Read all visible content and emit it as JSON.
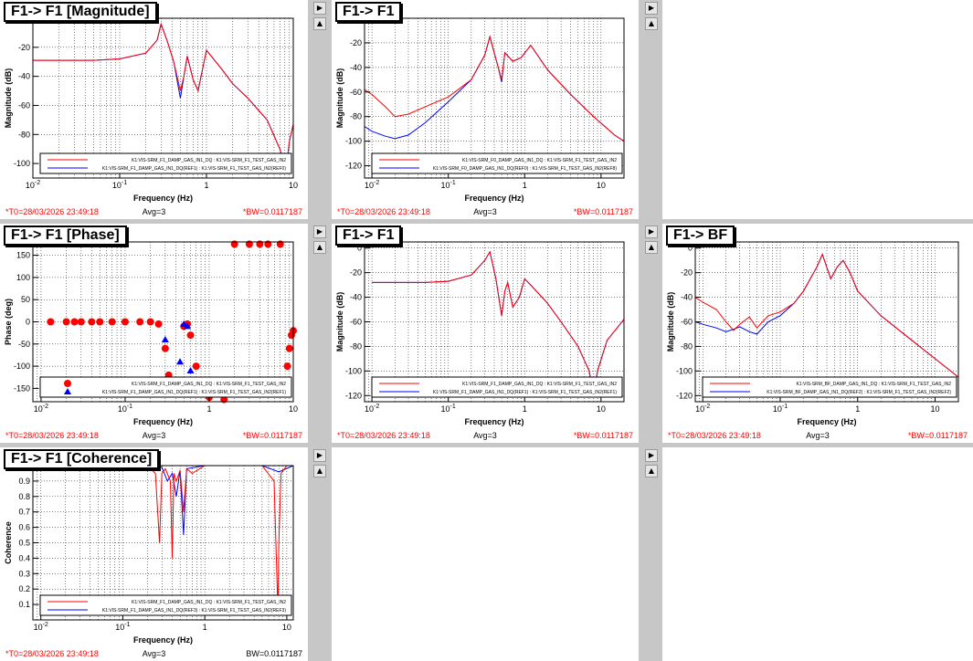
{
  "common": {
    "t0": "*T0=28/03/2026 23:49:18",
    "avg": "Avg=3",
    "bw_star": "*BW=0.0117187",
    "bw": "BW=0.0117187",
    "freq_label": "Frequency (Hz)",
    "mag_label": "Magnitude (dB)",
    "phase_label": "Phase (deg)",
    "coh_label": "Coherence"
  },
  "colors": {
    "series_a": "#ff0000",
    "series_b": "#0000ff",
    "bg": "#c7c7c7",
    "t0": "#ff0000"
  },
  "scroll_icon": "triangle-up-icon",
  "pads": [
    {
      "title": "F1-> F1 [Magnitude]",
      "legend": [
        "K1:VIS-SRM_F1_DAMP_GAS_IN1_DQ : K1:VIS-SRM_F1_TEST_GAS_IN2",
        "K1:VIS-SRM_F1_DAMP_GAS_IN1_DQ(REF1) : K1:VIS-SRM_F1_TEST_GAS_IN2(REF0)"
      ],
      "chart_data": {
        "type": "line",
        "xscale": "log",
        "xlim": [
          0.01,
          10
        ],
        "ylim": [
          -110,
          0
        ],
        "xlabel": "Frequency (Hz)",
        "ylabel": "Magnitude (dB)",
        "xticks": [
          "10^-2",
          "10^-1",
          "1",
          "10"
        ],
        "yticks": [
          -20,
          -40,
          -60,
          -80,
          -100
        ],
        "series": [
          {
            "x": [
              0.01,
              0.05,
              0.1,
              0.2,
              0.27,
              0.3,
              0.35,
              0.42,
              0.5,
              0.55,
              0.6,
              0.7,
              0.8,
              1,
              1.5,
              2,
              3,
              5,
              7,
              8.3,
              9,
              10
            ],
            "y": [
              -29,
              -29,
              -28,
              -24,
              -15,
              -4,
              -15,
              -30,
              -50,
              -40,
              -26,
              -42,
              -50,
              -22,
              -35,
              -45,
              -55,
              -70,
              -90,
              -104,
              -85,
              -73
            ]
          },
          {
            "x": [
              0.01,
              0.05,
              0.1,
              0.2,
              0.27,
              0.3,
              0.35,
              0.42,
              0.5,
              0.55,
              0.6,
              0.7,
              0.8,
              1,
              1.5,
              2,
              3,
              5,
              7,
              8.3,
              9,
              10
            ],
            "y": [
              -29,
              -29,
              -28,
              -24,
              -15,
              -4,
              -15,
              -30,
              -55,
              -40,
              -26,
              -42,
              -50,
              -22,
              -35,
              -45,
              -55,
              -70,
              -90,
              -104,
              -85,
              -73
            ]
          }
        ]
      }
    },
    {
      "title": "F1-> F1",
      "legend": [
        "K1:VIS-SRM_F0_DAMP_GAS_IN1_DQ : K1:VIS-SRM_F1_TEST_GAS_IN2",
        "K1:VIS-SRM_F0_DAMP_GAS_IN1_DQ(REF0) : K1:VIS-SRM_F1_TEST_GAS_IN2(REF8)"
      ],
      "chart_data": {
        "type": "line",
        "xscale": "log",
        "xlim": [
          0.008,
          20
        ],
        "ylim": [
          -130,
          0
        ],
        "xlabel": "Frequency (Hz)",
        "ylabel": "Magnitude (dB)",
        "xticks": [
          "10^-2",
          "10^-1",
          "1",
          "10"
        ],
        "yticks": [
          -20,
          -40,
          -60,
          -80,
          -100,
          -120
        ],
        "series": [
          {
            "x": [
              0.008,
              0.01,
              0.015,
              0.02,
              0.03,
              0.05,
              0.1,
              0.2,
              0.3,
              0.35,
              0.45,
              0.5,
              0.55,
              0.7,
              0.9,
              1.2,
              2,
              4,
              8,
              15,
              20
            ],
            "y": [
              -58,
              -62,
              -72,
              -80,
              -78,
              -72,
              -64,
              -50,
              -30,
              -15,
              -40,
              -50,
              -28,
              -35,
              -32,
              -22,
              -42,
              -62,
              -80,
              -95,
              -100
            ]
          },
          {
            "x": [
              0.008,
              0.01,
              0.015,
              0.02,
              0.03,
              0.05,
              0.1,
              0.2,
              0.3,
              0.35,
              0.45,
              0.5,
              0.55,
              0.7,
              0.9,
              1.2,
              2,
              4,
              8,
              15,
              20
            ],
            "y": [
              -88,
              -92,
              -96,
              -98,
              -95,
              -85,
              -68,
              -50,
              -30,
              -15,
              -40,
              -52,
              -28,
              -35,
              -32,
              -22,
              -42,
              -62,
              -80,
              -95,
              -100
            ]
          }
        ]
      }
    },
    {
      "title": "",
      "empty": true
    },
    {
      "title": "F1-> F1 [Phase]",
      "legend": [
        "K1:VIS-SRM_F1_DAMP_GAS_IN1_DQ : K1:VIS-SRM_F1_TEST_GAS_IN2",
        "K1:VIS-SRM_F1_DAMP_GAS_IN1_DQ(REF1) : K1:VIS-SRM_F1_TEST_GAS_IN2(REF1)"
      ],
      "chart_data": {
        "type": "scatter",
        "xscale": "log",
        "xlim": [
          0.008,
          10
        ],
        "ylim": [
          -180,
          180
        ],
        "xlabel": "Frequency (Hz)",
        "ylabel": "Phase (deg)",
        "xticks": [
          "10^-2",
          "10^-1",
          "1",
          "10"
        ],
        "yticks": [
          150,
          100,
          50,
          0,
          -50,
          -100,
          -150
        ],
        "series": [
          {
            "x": [
              0.013,
              0.02,
              0.025,
              0.03,
              0.04,
              0.05,
              0.07,
              0.1,
              0.15,
              0.2,
              0.25,
              0.3,
              0.33,
              0.45,
              0.5,
              0.55,
              0.6,
              0.7,
              0.8,
              1,
              1.5,
              2,
              3,
              4,
              5,
              7,
              8.5,
              9,
              9.5,
              10
            ],
            "y": [
              0,
              0,
              0,
              0,
              0,
              0,
              0,
              0,
              0,
              0,
              -5,
              -60,
              -120,
              -150,
              -10,
              -5,
              -30,
              -100,
              -150,
              -170,
              -175,
              175,
              175,
              175,
              175,
              175,
              -100,
              -60,
              -30,
              -20
            ]
          },
          {
            "x": [
              0.3,
              0.45,
              0.5,
              0.55,
              0.6
            ],
            "y": [
              -40,
              -90,
              -5,
              -10,
              -110
            ]
          }
        ]
      }
    },
    {
      "title": "F1-> F1",
      "legend": [
        "K1:VIS-SRM_F1_DAMP_GAS_IN1_DQ : K1:VIS-SRM_F1_TEST_GAS_IN2",
        "K1:VIS-SRM_F1_DAMP_GAS_IN1_DQ(REF1) : K1:VIS-SRM_F1_TEST_GAS_IN2(REF1)"
      ],
      "chart_data": {
        "type": "line",
        "xscale": "log",
        "xlim": [
          0.008,
          20
        ],
        "ylim": [
          -125,
          5
        ],
        "xlabel": "Frequency (Hz)",
        "ylabel": "Magnitude (dB)",
        "xticks": [
          "10^-2",
          "10^-1",
          "1",
          "10"
        ],
        "yticks": [
          0,
          -20,
          -40,
          -60,
          -80,
          -100,
          -120
        ],
        "series": [
          {
            "x": [
              0.01,
              0.05,
              0.1,
              0.2,
              0.3,
              0.35,
              0.42,
              0.5,
              0.55,
              0.6,
              0.7,
              0.85,
              1,
              1.2,
              2,
              3,
              5,
              7,
              8,
              9,
              12,
              20
            ],
            "y": [
              -28,
              -28,
              -27,
              -22,
              -10,
              -3,
              -25,
              -55,
              -35,
              -28,
              -48,
              -40,
              -25,
              -30,
              -45,
              -60,
              -80,
              -100,
              -120,
              -100,
              -75,
              -58
            ]
          },
          {
            "x": [
              0.01,
              0.05,
              0.1,
              0.2,
              0.3,
              0.35,
              0.42,
              0.5,
              0.55,
              0.6,
              0.7,
              0.85,
              1,
              1.2,
              2,
              3,
              5,
              7,
              8,
              9,
              12,
              20
            ],
            "y": [
              -28,
              -28,
              -27,
              -22,
              -10,
              -3,
              -25,
              -55,
              -35,
              -28,
              -48,
              -40,
              -25,
              -30,
              -45,
              -60,
              -80,
              -100,
              -120,
              -100,
              -75,
              -58
            ]
          }
        ]
      }
    },
    {
      "title": "F1-> BF",
      "legend": [
        "K1:VIS-SRM_BF_DAMP_GAS_IN1_DQ : K1:VIS-SRM_F1_TEST_GAS_IN2",
        "K1:VIS-SRM_BF_DAMP_GAS_IN1_DQ(REF2) : K1:VIS-SRM_F1_TEST_GAS_IN2(REF2)"
      ],
      "chart_data": {
        "type": "line",
        "xscale": "log",
        "xlim": [
          0.008,
          20
        ],
        "ylim": [
          -125,
          5
        ],
        "xlabel": "Frequency (Hz)",
        "ylabel": "Magnitude (dB)",
        "xticks": [
          "10^-2",
          "10^-1",
          "1",
          "10"
        ],
        "yticks": [
          0,
          -20,
          -40,
          -60,
          -80,
          -100,
          -120
        ],
        "series": [
          {
            "x": [
              0.008,
              0.01,
              0.015,
              0.02,
              0.025,
              0.03,
              0.04,
              0.05,
              0.07,
              0.1,
              0.15,
              0.2,
              0.3,
              0.35,
              0.45,
              0.55,
              0.65,
              0.8,
              1,
              2,
              5,
              10,
              20
            ],
            "y": [
              -40,
              -44,
              -50,
              -60,
              -67,
              -62,
              -56,
              -65,
              -55,
              -52,
              -45,
              -35,
              -15,
              -5,
              -25,
              -15,
              -10,
              -20,
              -35,
              -55,
              -75,
              -90,
              -105
            ]
          },
          {
            "x": [
              0.008,
              0.01,
              0.015,
              0.02,
              0.025,
              0.03,
              0.04,
              0.05,
              0.07,
              0.1,
              0.15,
              0.2,
              0.3,
              0.35,
              0.45,
              0.55,
              0.65,
              0.8,
              1,
              2,
              5,
              10,
              20
            ],
            "y": [
              -60,
              -62,
              -65,
              -68,
              -66,
              -64,
              -68,
              -70,
              -60,
              -55,
              -45,
              -35,
              -15,
              -5,
              -25,
              -15,
              -10,
              -20,
              -35,
              -55,
              -75,
              -90,
              -105
            ]
          }
        ]
      }
    },
    {
      "title": "F1-> F1 [Coherence]",
      "legend": [
        "K1:VIS-SRM_F1_DAMP_GAS_IN1_DQ : K1:VIS-SRM_F1_TEST_GAS_IN2",
        "K1:VIS-SRM_F1_DAMP_GAS_IN1_DQ(REF3) : K1:VIS-SRM_F1_TEST_GAS_IN2(REF3)"
      ],
      "chart_data": {
        "type": "line",
        "xscale": "log",
        "xlim": [
          0.008,
          12
        ],
        "ylim": [
          0,
          1
        ],
        "xlabel": "Frequency (Hz)",
        "ylabel": "Coherence",
        "xticks": [
          "10^-2",
          "10^-1",
          "1",
          "10"
        ],
        "yticks": [
          0.9,
          0.8,
          0.7,
          0.6,
          0.5,
          0.4,
          0.3,
          0.2,
          0.1
        ],
        "series": [
          {
            "x": [
              0.008,
              0.2,
              0.25,
              0.28,
              0.3,
              0.33,
              0.38,
              0.4,
              0.42,
              0.45,
              0.5,
              0.55,
              0.6,
              0.7,
              1,
              5,
              7,
              7.8,
              8,
              8.5,
              10,
              12
            ],
            "y": [
              1,
              1,
              0.95,
              0.5,
              0.95,
              0.98,
              0.9,
              0.4,
              0.95,
              0.9,
              0.97,
              0.7,
              0.98,
              0.95,
              1,
              1,
              0.9,
              0.05,
              0.5,
              0.95,
              1,
              1
            ]
          },
          {
            "x": [
              0.008,
              0.2,
              0.3,
              0.35,
              0.4,
              0.45,
              0.5,
              0.55,
              0.6,
              1,
              5,
              8,
              12
            ],
            "y": [
              1,
              1,
              0.99,
              0.9,
              0.95,
              0.8,
              0.97,
              0.55,
              0.98,
              1,
              1,
              0.96,
              1
            ]
          }
        ]
      }
    },
    {
      "title": "",
      "empty": true
    },
    {
      "title": "",
      "empty": true
    }
  ]
}
